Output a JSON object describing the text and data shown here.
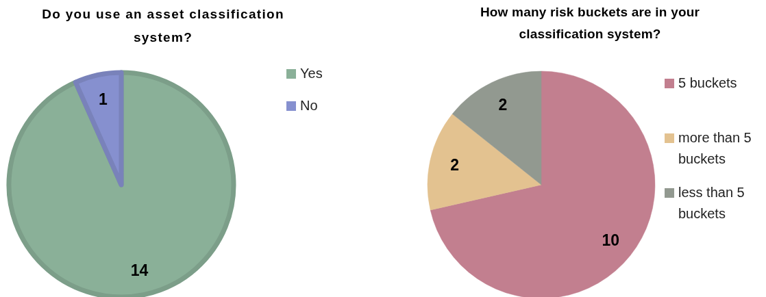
{
  "chart_data": [
    {
      "type": "pie",
      "title": "Do you use an asset classification system?",
      "categories": [
        "Yes",
        "No"
      ],
      "values": [
        14,
        1
      ],
      "colors": [
        "#8ab098",
        "#8690cf"
      ],
      "data_labels": true,
      "legend": "top right"
    },
    {
      "type": "pie",
      "title": "How many risk buckets are in your classification system?",
      "categories": [
        "5 buckets",
        "more than 5 buckets",
        "less than 5 buckets"
      ],
      "values": [
        10,
        2,
        2
      ],
      "colors": [
        "#c27f8f",
        "#e3c290",
        "#929990"
      ],
      "data_labels": true,
      "legend": "right"
    }
  ]
}
